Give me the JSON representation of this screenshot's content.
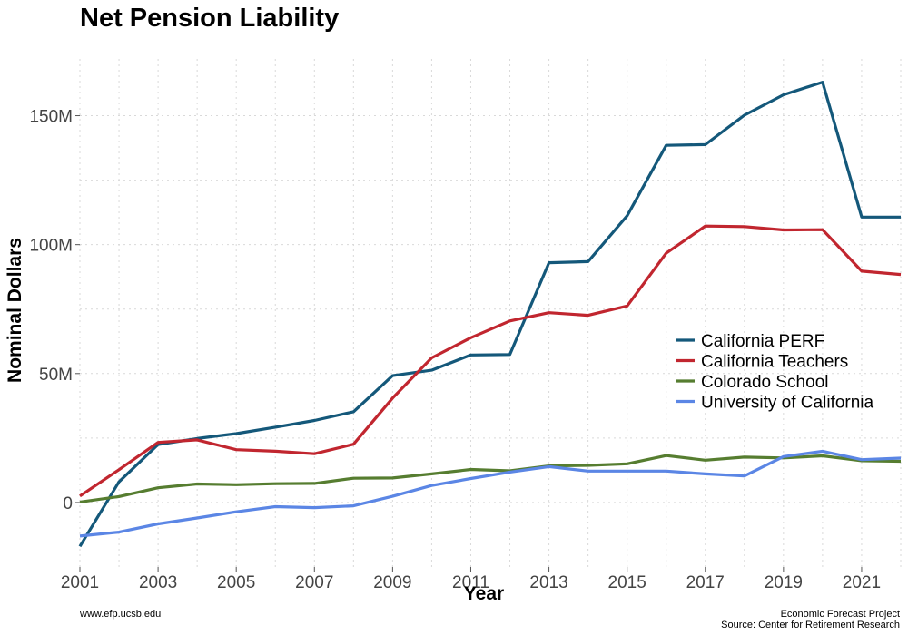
{
  "chart_data": {
    "type": "line",
    "title": "Net Pension Liability",
    "xlabel": "Year",
    "ylabel": "Nominal Dollars",
    "x": [
      2001,
      2002,
      2003,
      2004,
      2005,
      2006,
      2007,
      2008,
      2009,
      2010,
      2011,
      2012,
      2013,
      2014,
      2015,
      2016,
      2017,
      2018,
      2019,
      2020,
      2021,
      2022
    ],
    "xlim": [
      2001,
      2022
    ],
    "ylim": [
      -25000000,
      172000000
    ],
    "x_ticks": [
      2001,
      2003,
      2005,
      2007,
      2009,
      2011,
      2013,
      2015,
      2017,
      2019,
      2021
    ],
    "x_tick_labels": [
      "2001",
      "2003",
      "2005",
      "2007",
      "2009",
      "2011",
      "2013",
      "2015",
      "2017",
      "2019",
      "2021"
    ],
    "y_ticks": [
      0,
      50000000,
      100000000,
      150000000
    ],
    "y_tick_labels": [
      "0",
      "50M",
      "100M",
      "150M"
    ],
    "grid": true,
    "legend_position": "right",
    "series": [
      {
        "name": "California PERF",
        "color": "#14587a",
        "values": [
          -17000000,
          8000000,
          22500000,
          24800000,
          26700000,
          29200000,
          31800000,
          35200000,
          49200000,
          51300000,
          57200000,
          57400000,
          93000000,
          93400000,
          111200000,
          138500000,
          138800000,
          150200000,
          158100000,
          163000000,
          110700000,
          110700000
        ]
      },
      {
        "name": "California Teachers",
        "color": "#c1262f",
        "values": [
          2500000,
          12700000,
          23300000,
          24300000,
          20500000,
          19900000,
          18900000,
          22600000,
          40500000,
          56100000,
          63900000,
          70400000,
          73600000,
          72600000,
          76200000,
          96700000,
          107200000,
          107000000,
          105700000,
          105800000,
          89700000,
          88400000
        ]
      },
      {
        "name": "Colorado School",
        "color": "#567d30",
        "values": [
          200000,
          2300000,
          5700000,
          7200000,
          6900000,
          7300000,
          7400000,
          9400000,
          9500000,
          11100000,
          12800000,
          12300000,
          14200000,
          14400000,
          15000000,
          18200000,
          16400000,
          17600000,
          17300000,
          18100000,
          16200000,
          16000000
        ]
      },
      {
        "name": "University of California",
        "color": "#5b86e5",
        "values": [
          -13000000,
          -11500000,
          -8300000,
          -6000000,
          -3600000,
          -1600000,
          -2000000,
          -1300000,
          2400000,
          6600000,
          9300000,
          11800000,
          13900000,
          12200000,
          12200000,
          12200000,
          11100000,
          10300000,
          17800000,
          19900000,
          16600000,
          17200000
        ]
      }
    ]
  },
  "footer": {
    "left": "www.efp.ucsb.edu",
    "right_line1": "Economic Forecast Project",
    "right_line2": "Source: Center for Retirement Research"
  }
}
